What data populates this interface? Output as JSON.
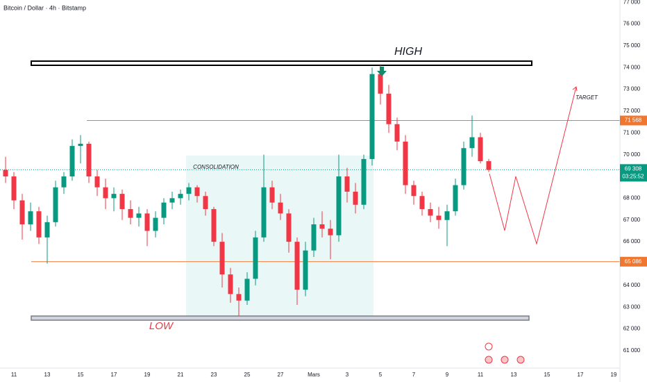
{
  "chart_data": {
    "type": "candlestick",
    "title": "Bitcoin / Dollar · 4h · Bitstamp",
    "categories": [
      null,
      "11",
      null,
      null,
      null,
      "13",
      null,
      null,
      null,
      "15",
      null,
      null,
      null,
      "17",
      null,
      null,
      null,
      "19",
      null,
      null,
      null,
      "21",
      null,
      null,
      null,
      "23",
      null,
      null,
      null,
      "25",
      null,
      null,
      null,
      "27",
      null,
      null,
      null,
      "Mars",
      null,
      null,
      null,
      "3",
      null,
      null,
      null,
      "5",
      null,
      null,
      null,
      "7",
      null,
      null,
      null,
      "9",
      null,
      null,
      null,
      "11",
      null,
      null,
      null,
      "13",
      null,
      null,
      null,
      "15",
      null,
      null,
      null,
      "17",
      null,
      null,
      null,
      "19"
    ],
    "open": [
      69300,
      69000,
      67900,
      66800,
      67400,
      66200,
      66900,
      68500,
      69000,
      70400,
      70500,
      69000,
      68500,
      68000,
      68200,
      67500,
      67100,
      67300,
      66500,
      67100,
      67800,
      68000,
      68200,
      68500,
      68100,
      67500,
      66000,
      64500,
      63600,
      63300,
      64300,
      66200,
      68500,
      67800,
      67300,
      66000,
      63800,
      65600,
      66800,
      66600,
      66300,
      69000,
      68300,
      67700,
      69800,
      73700,
      72800,
      71400,
      70600,
      68600,
      68100,
      67500,
      67200,
      67000,
      67400,
      68600,
      70300,
      70800,
      69700,
      null,
      null,
      null,
      null,
      null,
      null,
      null,
      null,
      null,
      null,
      null,
      null,
      null,
      null,
      null
    ],
    "high": [
      69900,
      69200,
      68200,
      67800,
      67600,
      67200,
      68800,
      69200,
      70700,
      70900,
      70600,
      69300,
      68900,
      68500,
      68400,
      67900,
      67600,
      67500,
      67400,
      68000,
      68300,
      68400,
      68700,
      68600,
      68300,
      67600,
      66400,
      64800,
      63900,
      64600,
      66500,
      70000,
      68800,
      68200,
      67500,
      66200,
      66000,
      67100,
      67400,
      67000,
      70000,
      69400,
      68700,
      70000,
      74000,
      74100,
      73200,
      71700,
      70900,
      68800,
      68300,
      67800,
      67600,
      67700,
      68900,
      70600,
      71800,
      71000,
      69800,
      null,
      null,
      null,
      null,
      null,
      null,
      null,
      null,
      null,
      null,
      null,
      null,
      null,
      null,
      null
    ],
    "low": [
      68700,
      67500,
      66100,
      66500,
      65900,
      65000,
      66700,
      68200,
      68800,
      69600,
      68700,
      68100,
      67500,
      67400,
      67000,
      66800,
      66700,
      65800,
      66200,
      66800,
      67500,
      67700,
      67900,
      67800,
      67200,
      65800,
      63900,
      63200,
      62600,
      63100,
      64000,
      66000,
      67500,
      67000,
      65500,
      63100,
      63500,
      65300,
      66200,
      65200,
      66000,
      67800,
      67300,
      67500,
      69500,
      72300,
      71000,
      70200,
      68200,
      67700,
      67200,
      66900,
      66600,
      65800,
      67200,
      68400,
      69900,
      69600,
      69200,
      null,
      null,
      null,
      null,
      null,
      null,
      null,
      null,
      null,
      null,
      null,
      null,
      null,
      null,
      null
    ],
    "close": [
      69000,
      67900,
      66800,
      67400,
      66200,
      66900,
      68500,
      69000,
      70400,
      70500,
      69000,
      68500,
      68000,
      68200,
      67500,
      67100,
      67300,
      66500,
      67100,
      67800,
      68000,
      68200,
      68500,
      68100,
      67500,
      66000,
      64500,
      63600,
      63300,
      64300,
      66200,
      68500,
      67800,
      67300,
      66000,
      63800,
      65600,
      66800,
      66600,
      66300,
      69000,
      68300,
      67700,
      69800,
      73700,
      72800,
      71400,
      70600,
      68600,
      68100,
      67500,
      67200,
      67000,
      67400,
      68600,
      70300,
      70800,
      69700,
      69300,
      null,
      null,
      null,
      null,
      null,
      null,
      null,
      null,
      null,
      null,
      null,
      null,
      null,
      null,
      null
    ],
    "up_color": "#089981",
    "down_color": "#f23645",
    "ylim": [
      60200,
      77100
    ],
    "yticks": [
      {
        "value": 61000,
        "label": "61 000"
      },
      {
        "value": 62000,
        "label": "62 000"
      },
      {
        "value": 63000,
        "label": "63 000"
      },
      {
        "value": 64000,
        "label": "64 000"
      },
      {
        "value": 65000,
        "label": "65 000"
      },
      {
        "value": 66000,
        "label": "66 000"
      },
      {
        "value": 67000,
        "label": "67 000"
      },
      {
        "value": 68000,
        "label": "68 000"
      },
      {
        "value": 69000,
        "label": "69 000"
      },
      {
        "value": 70000,
        "label": "70 000"
      },
      {
        "value": 71000,
        "label": "71 000"
      },
      {
        "value": 72000,
        "label": "72 000"
      },
      {
        "value": 73000,
        "label": "73 000"
      },
      {
        "value": 74000,
        "label": "74 000"
      },
      {
        "value": 75000,
        "label": "75 000"
      },
      {
        "value": 76000,
        "label": "76 000"
      },
      {
        "value": 77000,
        "label": "77 000"
      }
    ],
    "grid": false,
    "levels": [
      {
        "value": 71568,
        "label": "71 568",
        "color": "#f0772f"
      },
      {
        "value": 65086,
        "label": "65 086",
        "color": "#f0772f"
      }
    ],
    "last_price": {
      "value": 69308,
      "label": "69 308",
      "countdown": "03:25:52",
      "color": "#089981"
    },
    "annotations": {
      "high": "HIGH",
      "low": "LOW",
      "consolidation": "CONSOLIDATION",
      "target": "TARGET"
    }
  }
}
